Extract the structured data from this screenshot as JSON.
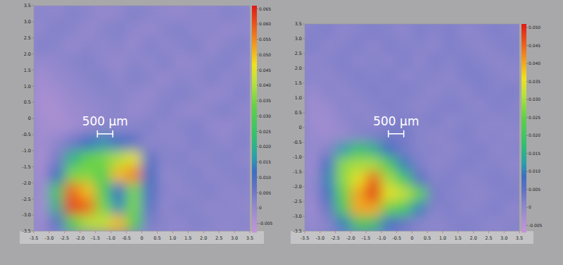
{
  "chart_data": [
    {
      "type": "heatmap",
      "x": [
        -3.25,
        -2.75,
        -2.25,
        -1.75,
        -1.25,
        -0.75,
        -0.25,
        0.25,
        0.75,
        1.25,
        1.75,
        2.25,
        2.75,
        3.25
      ],
      "y": [
        3.25,
        2.75,
        2.25,
        1.75,
        1.25,
        0.75,
        0.25,
        -0.25,
        -0.75,
        -1.25,
        -1.75,
        -2.25,
        -2.75,
        -3.25
      ],
      "values": [
        [
          0.002,
          0.001,
          0.003,
          0.002,
          0.0,
          0.001,
          0.003,
          0.002,
          0.001,
          0.0,
          0.002,
          0.001,
          0.003,
          0.002
        ],
        [
          0.001,
          0.003,
          0.002,
          0.0,
          0.002,
          0.003,
          0.001,
          0.0,
          0.002,
          0.003,
          0.001,
          0.002,
          0.0,
          0.001
        ],
        [
          0.003,
          0.002,
          0.0,
          0.002,
          0.001,
          0.002,
          0.0,
          0.003,
          0.001,
          0.002,
          0.003,
          0.0,
          0.002,
          0.003
        ],
        [
          0.0,
          0.001,
          0.002,
          0.003,
          0.001,
          0.0,
          0.002,
          0.001,
          0.003,
          0.0,
          0.001,
          0.002,
          0.003,
          0.001
        ],
        [
          -0.002,
          0.0,
          0.001,
          0.002,
          0.003,
          0.001,
          0.003,
          0.002,
          0.0,
          0.002,
          0.001,
          0.003,
          0.001,
          0.002
        ],
        [
          -0.003,
          -0.002,
          0.0,
          0.001,
          0.002,
          0.002,
          0.001,
          0.0,
          0.002,
          0.003,
          0.002,
          0.0,
          0.001,
          0.003
        ],
        [
          -0.003,
          -0.003,
          -0.001,
          0.0,
          0.001,
          0.002,
          0.0,
          0.001,
          0.003,
          0.001,
          0.0,
          0.002,
          0.003,
          0.001
        ],
        [
          -0.002,
          -0.003,
          -0.002,
          0.0,
          0.002,
          0.001,
          0.002,
          0.003,
          0.001,
          0.002,
          0.003,
          0.001,
          0.0,
          0.002
        ],
        [
          -0.002,
          0.001,
          0.005,
          0.012,
          0.015,
          0.012,
          0.008,
          0.001,
          0.002,
          0.001,
          0.003,
          0.002,
          0.001,
          0.003
        ],
        [
          -0.003,
          0.004,
          0.02,
          0.032,
          0.035,
          0.04,
          0.045,
          0.008,
          0.002,
          0.003,
          0.001,
          0.002,
          0.003,
          0.001
        ],
        [
          -0.002,
          0.012,
          0.035,
          0.036,
          0.03,
          0.05,
          0.055,
          0.012,
          0.001,
          0.002,
          0.003,
          0.001,
          0.002,
          0.003
        ],
        [
          -0.001,
          0.025,
          0.058,
          0.05,
          0.03,
          0.012,
          0.035,
          0.01,
          0.002,
          0.001,
          0.002,
          0.003,
          0.001,
          0.002
        ],
        [
          -0.002,
          0.02,
          0.062,
          0.058,
          0.035,
          0.015,
          0.035,
          0.008,
          0.001,
          0.003,
          0.002,
          0.001,
          0.002,
          0.001
        ],
        [
          -0.001,
          0.008,
          0.03,
          0.04,
          0.042,
          0.05,
          0.03,
          0.004,
          0.002,
          0.001,
          0.003,
          0.002,
          0.001,
          0.002
        ]
      ],
      "xlim": [
        -3.5,
        3.5
      ],
      "ylim": [
        -3.5,
        3.5
      ],
      "xticks": [
        -3.5,
        {
          "value": -3,
          "label": "-3.0"
        },
        -2.5,
        {
          "value": -2,
          "label": "-2.0"
        },
        -1.5,
        {
          "value": -1,
          "label": "-1.0"
        },
        -0.5,
        0,
        0.5,
        {
          "value": 1,
          "label": "1.0"
        },
        1.5,
        {
          "value": 2,
          "label": "2.0"
        },
        2.5,
        {
          "value": 3,
          "label": "3.0"
        },
        3.5
      ],
      "yticks": [
        -3.5,
        {
          "value": -3,
          "label": "-3.0"
        },
        -2.5,
        {
          "value": -2,
          "label": "-2.0"
        },
        -1.5,
        {
          "value": -1,
          "label": "-1.0"
        },
        -0.5,
        0,
        0.5,
        {
          "value": 1,
          "label": "1.0"
        },
        1.5,
        {
          "value": 2,
          "label": "2.0"
        },
        2.5,
        {
          "value": 3,
          "label": "3.0"
        },
        3.5
      ],
      "color_range": [
        -0.008,
        0.066
      ],
      "color_ticks": [
        -0.005,
        0,
        0.005,
        {
          "value": 0.01,
          "label": "0.010"
        },
        0.015,
        {
          "value": 0.02,
          "label": "0.020"
        },
        0.025,
        {
          "value": 0.03,
          "label": "0.030"
        },
        0.035,
        {
          "value": 0.04,
          "label": "0.040"
        },
        0.045,
        {
          "value": 0.05,
          "label": "0.050"
        },
        0.055,
        {
          "value": 0.06,
          "label": "0.060"
        },
        0.065
      ],
      "annotations": [
        {
          "text": "500 μm",
          "x": -1.44,
          "y": -0.48,
          "length": 0.5
        }
      ]
    },
    {
      "type": "heatmap",
      "x": [
        -3.25,
        -2.75,
        -2.25,
        -1.75,
        -1.25,
        -0.75,
        -0.25,
        0.25,
        0.75,
        1.25,
        1.75,
        2.25,
        2.75,
        3.25
      ],
      "y": [
        3.25,
        2.75,
        2.25,
        1.75,
        1.25,
        0.75,
        0.25,
        -0.25,
        -0.75,
        -1.25,
        -1.75,
        -2.25,
        -2.75,
        -3.25
      ],
      "values": [
        [
          0.001,
          0.002,
          0.0,
          0.001,
          0.002,
          0.001,
          0.0,
          0.002,
          0.001,
          0.002,
          0.0,
          0.001,
          0.002,
          0.001
        ],
        [
          0.002,
          0.0,
          0.001,
          0.002,
          0.0,
          0.002,
          0.001,
          0.001,
          0.0,
          0.002,
          0.001,
          0.0,
          0.001,
          0.002
        ],
        [
          0.0,
          0.001,
          0.002,
          0.0,
          0.001,
          0.0,
          0.002,
          0.0,
          0.002,
          0.001,
          0.002,
          0.001,
          0.0,
          0.001
        ],
        [
          0.001,
          0.0,
          0.001,
          0.002,
          0.001,
          0.002,
          0.0,
          0.001,
          0.001,
          0.0,
          0.002,
          0.002,
          0.001,
          0.0
        ],
        [
          -0.001,
          0.001,
          0.0,
          0.001,
          0.002,
          0.001,
          0.002,
          0.001,
          0.0,
          0.001,
          0.0,
          0.002,
          0.001,
          0.002
        ],
        [
          -0.002,
          -0.001,
          0.001,
          0.0,
          0.001,
          0.002,
          0.001,
          0.0,
          0.001,
          0.002,
          0.001,
          0.0,
          0.002,
          0.001
        ],
        [
          -0.002,
          -0.002,
          0.0,
          0.001,
          0.0,
          0.001,
          0.002,
          0.001,
          0.002,
          0.0,
          0.001,
          0.001,
          0.0,
          0.001
        ],
        [
          -0.001,
          -0.002,
          -0.001,
          0.001,
          0.002,
          0.003,
          0.003,
          0.001,
          0.0,
          0.001,
          0.002,
          0.0,
          0.001,
          0.0
        ],
        [
          -0.001,
          0.001,
          0.012,
          0.018,
          0.015,
          0.008,
          0.003,
          0.001,
          0.001,
          0.0,
          0.001,
          0.002,
          0.0,
          0.001
        ],
        [
          -0.002,
          0.008,
          0.028,
          0.03,
          0.03,
          0.022,
          0.01,
          0.002,
          0.0,
          0.001,
          0.002,
          0.001,
          0.001,
          0.0
        ],
        [
          -0.001,
          0.01,
          0.028,
          0.035,
          0.045,
          0.03,
          0.02,
          0.006,
          0.001,
          0.002,
          0.0,
          0.001,
          0.002,
          0.001
        ],
        [
          -0.001,
          0.008,
          0.025,
          0.04,
          0.05,
          0.035,
          0.032,
          0.025,
          0.003,
          0.001,
          0.001,
          0.0,
          0.001,
          0.002
        ],
        [
          -0.002,
          0.004,
          0.02,
          0.04,
          0.04,
          0.025,
          0.02,
          0.01,
          0.001,
          0.002,
          0.0,
          0.001,
          0.002,
          0.0
        ],
        [
          -0.001,
          0.001,
          0.01,
          0.02,
          0.018,
          0.008,
          0.004,
          0.001,
          0.0,
          0.001,
          0.002,
          0.001,
          0.0,
          0.001
        ]
      ],
      "xlim": [
        -3.5,
        3.5
      ],
      "ylim": [
        -3.5,
        3.5
      ],
      "xticks": [
        -3.5,
        {
          "value": -3,
          "label": "-3.0"
        },
        -2.5,
        {
          "value": -2,
          "label": "-2.0"
        },
        -1.5,
        {
          "value": -1,
          "label": "-1.0"
        },
        -0.5,
        0,
        0.5,
        {
          "value": 1,
          "label": "1.0"
        },
        1.5,
        {
          "value": 2,
          "label": "2.0"
        },
        2.5,
        {
          "value": 3,
          "label": "3.0"
        },
        3.5
      ],
      "yticks": [
        -3.5,
        {
          "value": -3,
          "label": "-3.0"
        },
        -2.5,
        {
          "value": -2,
          "label": "-2.0"
        },
        -1.5,
        {
          "value": -1,
          "label": "-1.0"
        },
        -0.5,
        0,
        0.5,
        {
          "value": 1,
          "label": "1.0"
        },
        1.5,
        {
          "value": 2,
          "label": "2.0"
        },
        2.5,
        {
          "value": 3,
          "label": "3.0"
        },
        3.5
      ],
      "color_range": [
        -0.007,
        0.051
      ],
      "color_ticks": [
        -0.005,
        0,
        0.005,
        {
          "value": 0.01,
          "label": "0.010"
        },
        0.015,
        {
          "value": 0.02,
          "label": "0.020"
        },
        0.025,
        {
          "value": 0.03,
          "label": "0.030"
        },
        0.035,
        {
          "value": 0.04,
          "label": "0.040"
        },
        0.045,
        {
          "value": 0.05,
          "label": "0.050"
        }
      ],
      "annotations": [
        {
          "text": "500 μm",
          "x": -0.77,
          "y": -0.21,
          "length": 0.5
        }
      ]
    }
  ]
}
